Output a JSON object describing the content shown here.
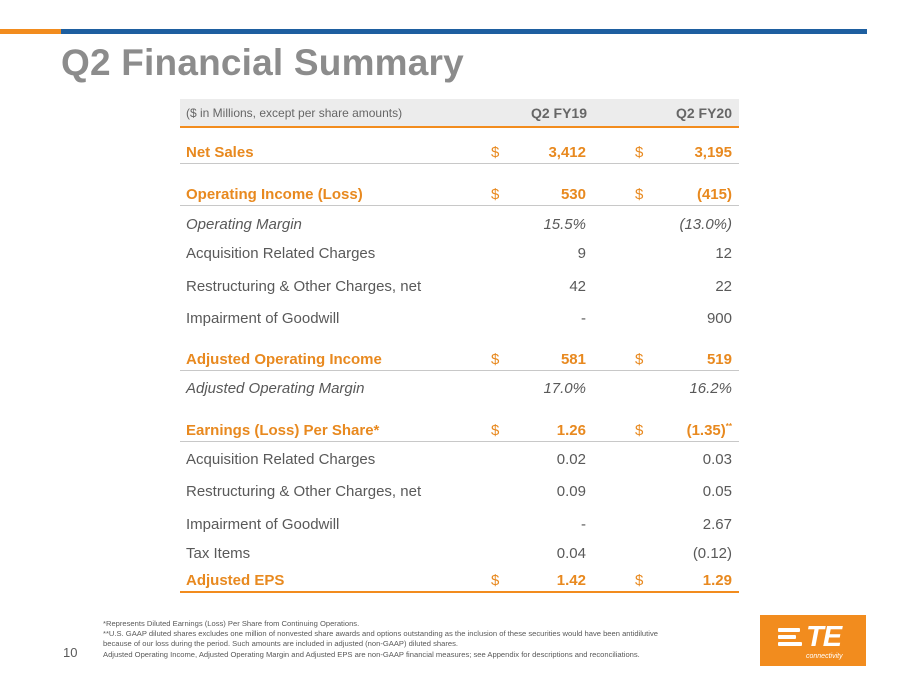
{
  "header": {
    "title": "Q2 Financial Summary",
    "accent_color": "#f28c1e",
    "bar_color": "#1e5fa0"
  },
  "table": {
    "unit_label": "($ in Millions, except per share amounts)",
    "col1": "Q2 FY19",
    "col2": "Q2 FY20",
    "rows": [
      {
        "label": "Net Sales",
        "cur1": "$",
        "v1": "3,412",
        "cur2": "$",
        "v2": "3,195"
      },
      {
        "label": "Operating Income (Loss)",
        "cur1": "$",
        "v1": "530",
        "cur2": "$",
        "v2": "(415)"
      },
      {
        "label": "Operating Margin",
        "v1": "15.5%",
        "v2": "(13.0%)"
      },
      {
        "label": "Acquisition Related Charges",
        "v1": "9",
        "v2": "12"
      },
      {
        "label": "Restructuring & Other Charges, net",
        "v1": "42",
        "v2": "22"
      },
      {
        "label": "Impairment of Goodwill",
        "v1": "-",
        "v2": "900"
      },
      {
        "label": "Adjusted Operating Income",
        "cur1": "$",
        "v1": "581",
        "cur2": "$",
        "v2": "519"
      },
      {
        "label": "Adjusted Operating Margin",
        "v1": "17.0%",
        "v2": "16.2%"
      },
      {
        "label": "Earnings (Loss) Per Share*",
        "cur1": "$",
        "v1": "1.26",
        "cur2": "$",
        "v2": "(1.35)",
        "v2_sup": "**"
      },
      {
        "label": "Acquisition Related Charges",
        "v1": "0.02",
        "v2": "0.03"
      },
      {
        "label": "Restructuring & Other Charges, net",
        "v1": "0.09",
        "v2": "0.05"
      },
      {
        "label": "Impairment of Goodwill",
        "v1": "-",
        "v2": "2.67"
      },
      {
        "label": "Tax Items",
        "v1": "0.04",
        "v2": "(0.12)"
      },
      {
        "label": "Adjusted EPS",
        "cur1": "$",
        "v1": "1.42",
        "cur2": "$",
        "v2": "1.29"
      }
    ]
  },
  "footer": {
    "page_number": "10",
    "notes": [
      "*Represents Diluted Earnings (Loss) Per Share from Continuing Operations.",
      "**U.S. GAAP diluted shares excludes one million of nonvested share awards and options outstanding as the inclusion of these securities would have been antidilutive",
      "because of our loss during the period. Such amounts are included in adjusted (non-GAAP) diluted shares.",
      "Adjusted Operating Income, Adjusted Operating Margin and Adjusted EPS are non-GAAP financial measures; see Appendix for descriptions and reconciliations."
    ],
    "logo_text": "TE",
    "logo_subtext": "connectivity"
  }
}
